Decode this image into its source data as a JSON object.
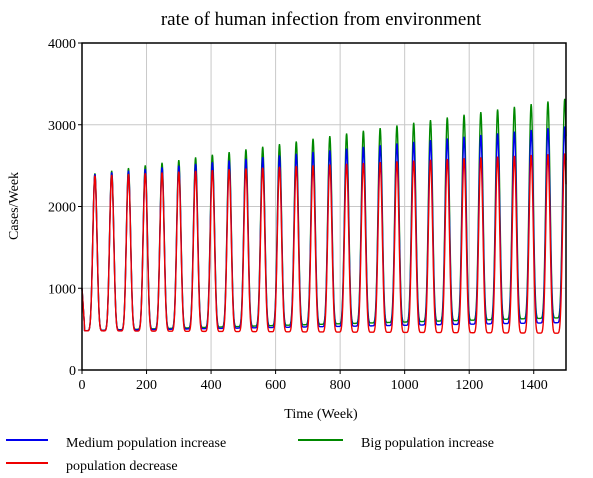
{
  "chart_data": {
    "type": "line",
    "title": "rate of human infection from environment",
    "xlabel": "Time (Week)",
    "ylabel": "Cases/Week",
    "xlim": [
      0,
      1500
    ],
    "ylim": [
      0,
      4000
    ],
    "x_ticks": [
      0,
      200,
      400,
      600,
      800,
      1000,
      1200,
      1400
    ],
    "y_ticks": [
      0,
      1000,
      2000,
      3000,
      4000
    ],
    "grid": true,
    "legend_position": "bottom",
    "period_weeks": 52,
    "first_peak_week": 40,
    "series": [
      {
        "name": "Medium population increase",
        "color": "#0000ee",
        "peak_start": 2380,
        "peak_end": 2980,
        "trough_start": 480,
        "trough_end": 580
      },
      {
        "name": "Big population increase",
        "color": "#008800",
        "peak_start": 2380,
        "peak_end": 3320,
        "trough_start": 480,
        "trough_end": 640
      },
      {
        "name": "population decrease",
        "color": "#ee0000",
        "peak_start": 2370,
        "peak_end": 2650,
        "trough_start": 480,
        "trough_end": 450
      }
    ]
  }
}
